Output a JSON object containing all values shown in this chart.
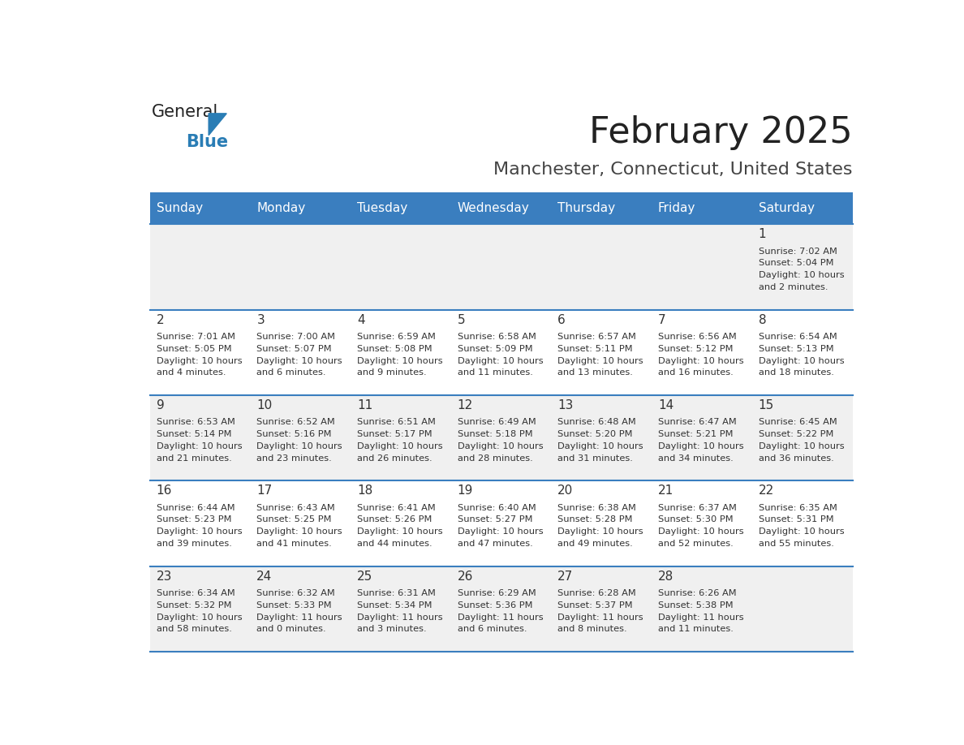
{
  "title": "February 2025",
  "subtitle": "Manchester, Connecticut, United States",
  "header_bg": "#3a7ebf",
  "header_text_color": "#ffffff",
  "cell_bg_alt": "#f0f0f0",
  "cell_bg_white": "#ffffff",
  "day_headers": [
    "Sunday",
    "Monday",
    "Tuesday",
    "Wednesday",
    "Thursday",
    "Friday",
    "Saturday"
  ],
  "title_color": "#222222",
  "subtitle_color": "#444444",
  "line_color": "#3a7ebf",
  "day_number_color": "#333333",
  "info_color": "#333333",
  "days": [
    {
      "date": 1,
      "row": 0,
      "col": 6,
      "sunrise": "7:02 AM",
      "sunset": "5:04 PM",
      "daylight": "10 hours and 2 minutes"
    },
    {
      "date": 2,
      "row": 1,
      "col": 0,
      "sunrise": "7:01 AM",
      "sunset": "5:05 PM",
      "daylight": "10 hours and 4 minutes"
    },
    {
      "date": 3,
      "row": 1,
      "col": 1,
      "sunrise": "7:00 AM",
      "sunset": "5:07 PM",
      "daylight": "10 hours and 6 minutes"
    },
    {
      "date": 4,
      "row": 1,
      "col": 2,
      "sunrise": "6:59 AM",
      "sunset": "5:08 PM",
      "daylight": "10 hours and 9 minutes"
    },
    {
      "date": 5,
      "row": 1,
      "col": 3,
      "sunrise": "6:58 AM",
      "sunset": "5:09 PM",
      "daylight": "10 hours and 11 minutes"
    },
    {
      "date": 6,
      "row": 1,
      "col": 4,
      "sunrise": "6:57 AM",
      "sunset": "5:11 PM",
      "daylight": "10 hours and 13 minutes"
    },
    {
      "date": 7,
      "row": 1,
      "col": 5,
      "sunrise": "6:56 AM",
      "sunset": "5:12 PM",
      "daylight": "10 hours and 16 minutes"
    },
    {
      "date": 8,
      "row": 1,
      "col": 6,
      "sunrise": "6:54 AM",
      "sunset": "5:13 PM",
      "daylight": "10 hours and 18 minutes"
    },
    {
      "date": 9,
      "row": 2,
      "col": 0,
      "sunrise": "6:53 AM",
      "sunset": "5:14 PM",
      "daylight": "10 hours and 21 minutes"
    },
    {
      "date": 10,
      "row": 2,
      "col": 1,
      "sunrise": "6:52 AM",
      "sunset": "5:16 PM",
      "daylight": "10 hours and 23 minutes"
    },
    {
      "date": 11,
      "row": 2,
      "col": 2,
      "sunrise": "6:51 AM",
      "sunset": "5:17 PM",
      "daylight": "10 hours and 26 minutes"
    },
    {
      "date": 12,
      "row": 2,
      "col": 3,
      "sunrise": "6:49 AM",
      "sunset": "5:18 PM",
      "daylight": "10 hours and 28 minutes"
    },
    {
      "date": 13,
      "row": 2,
      "col": 4,
      "sunrise": "6:48 AM",
      "sunset": "5:20 PM",
      "daylight": "10 hours and 31 minutes"
    },
    {
      "date": 14,
      "row": 2,
      "col": 5,
      "sunrise": "6:47 AM",
      "sunset": "5:21 PM",
      "daylight": "10 hours and 34 minutes"
    },
    {
      "date": 15,
      "row": 2,
      "col": 6,
      "sunrise": "6:45 AM",
      "sunset": "5:22 PM",
      "daylight": "10 hours and 36 minutes"
    },
    {
      "date": 16,
      "row": 3,
      "col": 0,
      "sunrise": "6:44 AM",
      "sunset": "5:23 PM",
      "daylight": "10 hours and 39 minutes"
    },
    {
      "date": 17,
      "row": 3,
      "col": 1,
      "sunrise": "6:43 AM",
      "sunset": "5:25 PM",
      "daylight": "10 hours and 41 minutes"
    },
    {
      "date": 18,
      "row": 3,
      "col": 2,
      "sunrise": "6:41 AM",
      "sunset": "5:26 PM",
      "daylight": "10 hours and 44 minutes"
    },
    {
      "date": 19,
      "row": 3,
      "col": 3,
      "sunrise": "6:40 AM",
      "sunset": "5:27 PM",
      "daylight": "10 hours and 47 minutes"
    },
    {
      "date": 20,
      "row": 3,
      "col": 4,
      "sunrise": "6:38 AM",
      "sunset": "5:28 PM",
      "daylight": "10 hours and 49 minutes"
    },
    {
      "date": 21,
      "row": 3,
      "col": 5,
      "sunrise": "6:37 AM",
      "sunset": "5:30 PM",
      "daylight": "10 hours and 52 minutes"
    },
    {
      "date": 22,
      "row": 3,
      "col": 6,
      "sunrise": "6:35 AM",
      "sunset": "5:31 PM",
      "daylight": "10 hours and 55 minutes"
    },
    {
      "date": 23,
      "row": 4,
      "col": 0,
      "sunrise": "6:34 AM",
      "sunset": "5:32 PM",
      "daylight": "10 hours and 58 minutes"
    },
    {
      "date": 24,
      "row": 4,
      "col": 1,
      "sunrise": "6:32 AM",
      "sunset": "5:33 PM",
      "daylight": "11 hours and 0 minutes"
    },
    {
      "date": 25,
      "row": 4,
      "col": 2,
      "sunrise": "6:31 AM",
      "sunset": "5:34 PM",
      "daylight": "11 hours and 3 minutes"
    },
    {
      "date": 26,
      "row": 4,
      "col": 3,
      "sunrise": "6:29 AM",
      "sunset": "5:36 PM",
      "daylight": "11 hours and 6 minutes"
    },
    {
      "date": 27,
      "row": 4,
      "col": 4,
      "sunrise": "6:28 AM",
      "sunset": "5:37 PM",
      "daylight": "11 hours and 8 minutes"
    },
    {
      "date": 28,
      "row": 4,
      "col": 5,
      "sunrise": "6:26 AM",
      "sunset": "5:38 PM",
      "daylight": "11 hours and 11 minutes"
    }
  ]
}
